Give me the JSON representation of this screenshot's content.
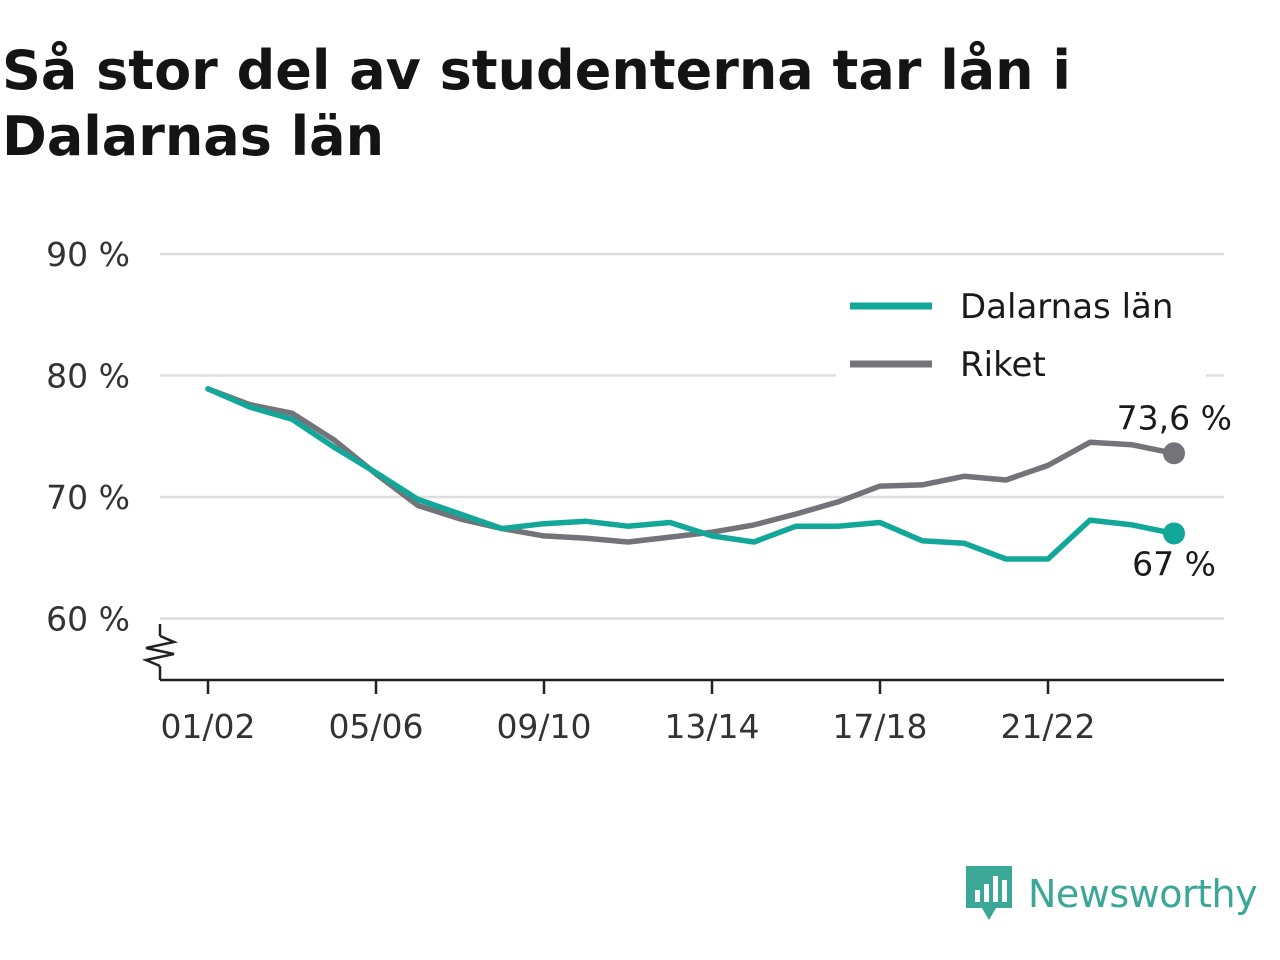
{
  "title": "Så stor del av studenterna tar lån i Dalarnas län",
  "colors": {
    "dalarna": "#13a79a",
    "riket": "#74737a",
    "grid": "#dddddd",
    "axis": "#222222",
    "brand": "#3aa797"
  },
  "chart_data": {
    "type": "line",
    "x": [
      "01/02",
      "02/03",
      "03/04",
      "04/05",
      "05/06",
      "06/07",
      "07/08",
      "08/09",
      "09/10",
      "10/11",
      "11/12",
      "12/13",
      "13/14",
      "14/15",
      "15/16",
      "16/17",
      "17/18",
      "18/19",
      "19/20",
      "20/21",
      "21/22",
      "22/23",
      "23/24",
      "24/25"
    ],
    "xticks": [
      "01/02",
      "05/06",
      "09/10",
      "13/14",
      "17/18",
      "21/22"
    ],
    "yticks": [
      60,
      70,
      80,
      90
    ],
    "ytick_labels": [
      "60 %",
      "70 %",
      "80 %",
      "90 %"
    ],
    "ylim": [
      55,
      90
    ],
    "grid": true,
    "legend_position": "top-right",
    "series": [
      {
        "name": "Dalarnas län",
        "color": "#13a79a",
        "values": [
          78.9,
          77.4,
          76.4,
          74.1,
          72.0,
          69.8,
          68.6,
          67.4,
          67.8,
          68.0,
          67.6,
          67.9,
          66.8,
          66.3,
          67.6,
          67.6,
          67.9,
          66.4,
          66.2,
          64.9,
          64.9,
          68.1,
          67.7,
          67.0
        ],
        "end_label": "67 %"
      },
      {
        "name": "Riket",
        "color": "#74737a",
        "values": [
          78.9,
          77.6,
          76.9,
          74.7,
          71.9,
          69.3,
          68.2,
          67.4,
          66.8,
          66.6,
          66.3,
          66.7,
          67.1,
          67.7,
          68.6,
          69.6,
          70.9,
          71.0,
          71.7,
          71.4,
          72.6,
          74.5,
          74.3,
          73.6
        ],
        "end_label": "73,6 %"
      }
    ]
  },
  "brand": {
    "name": "Newsworthy",
    "icon": "newsworthy-logo-icon"
  }
}
